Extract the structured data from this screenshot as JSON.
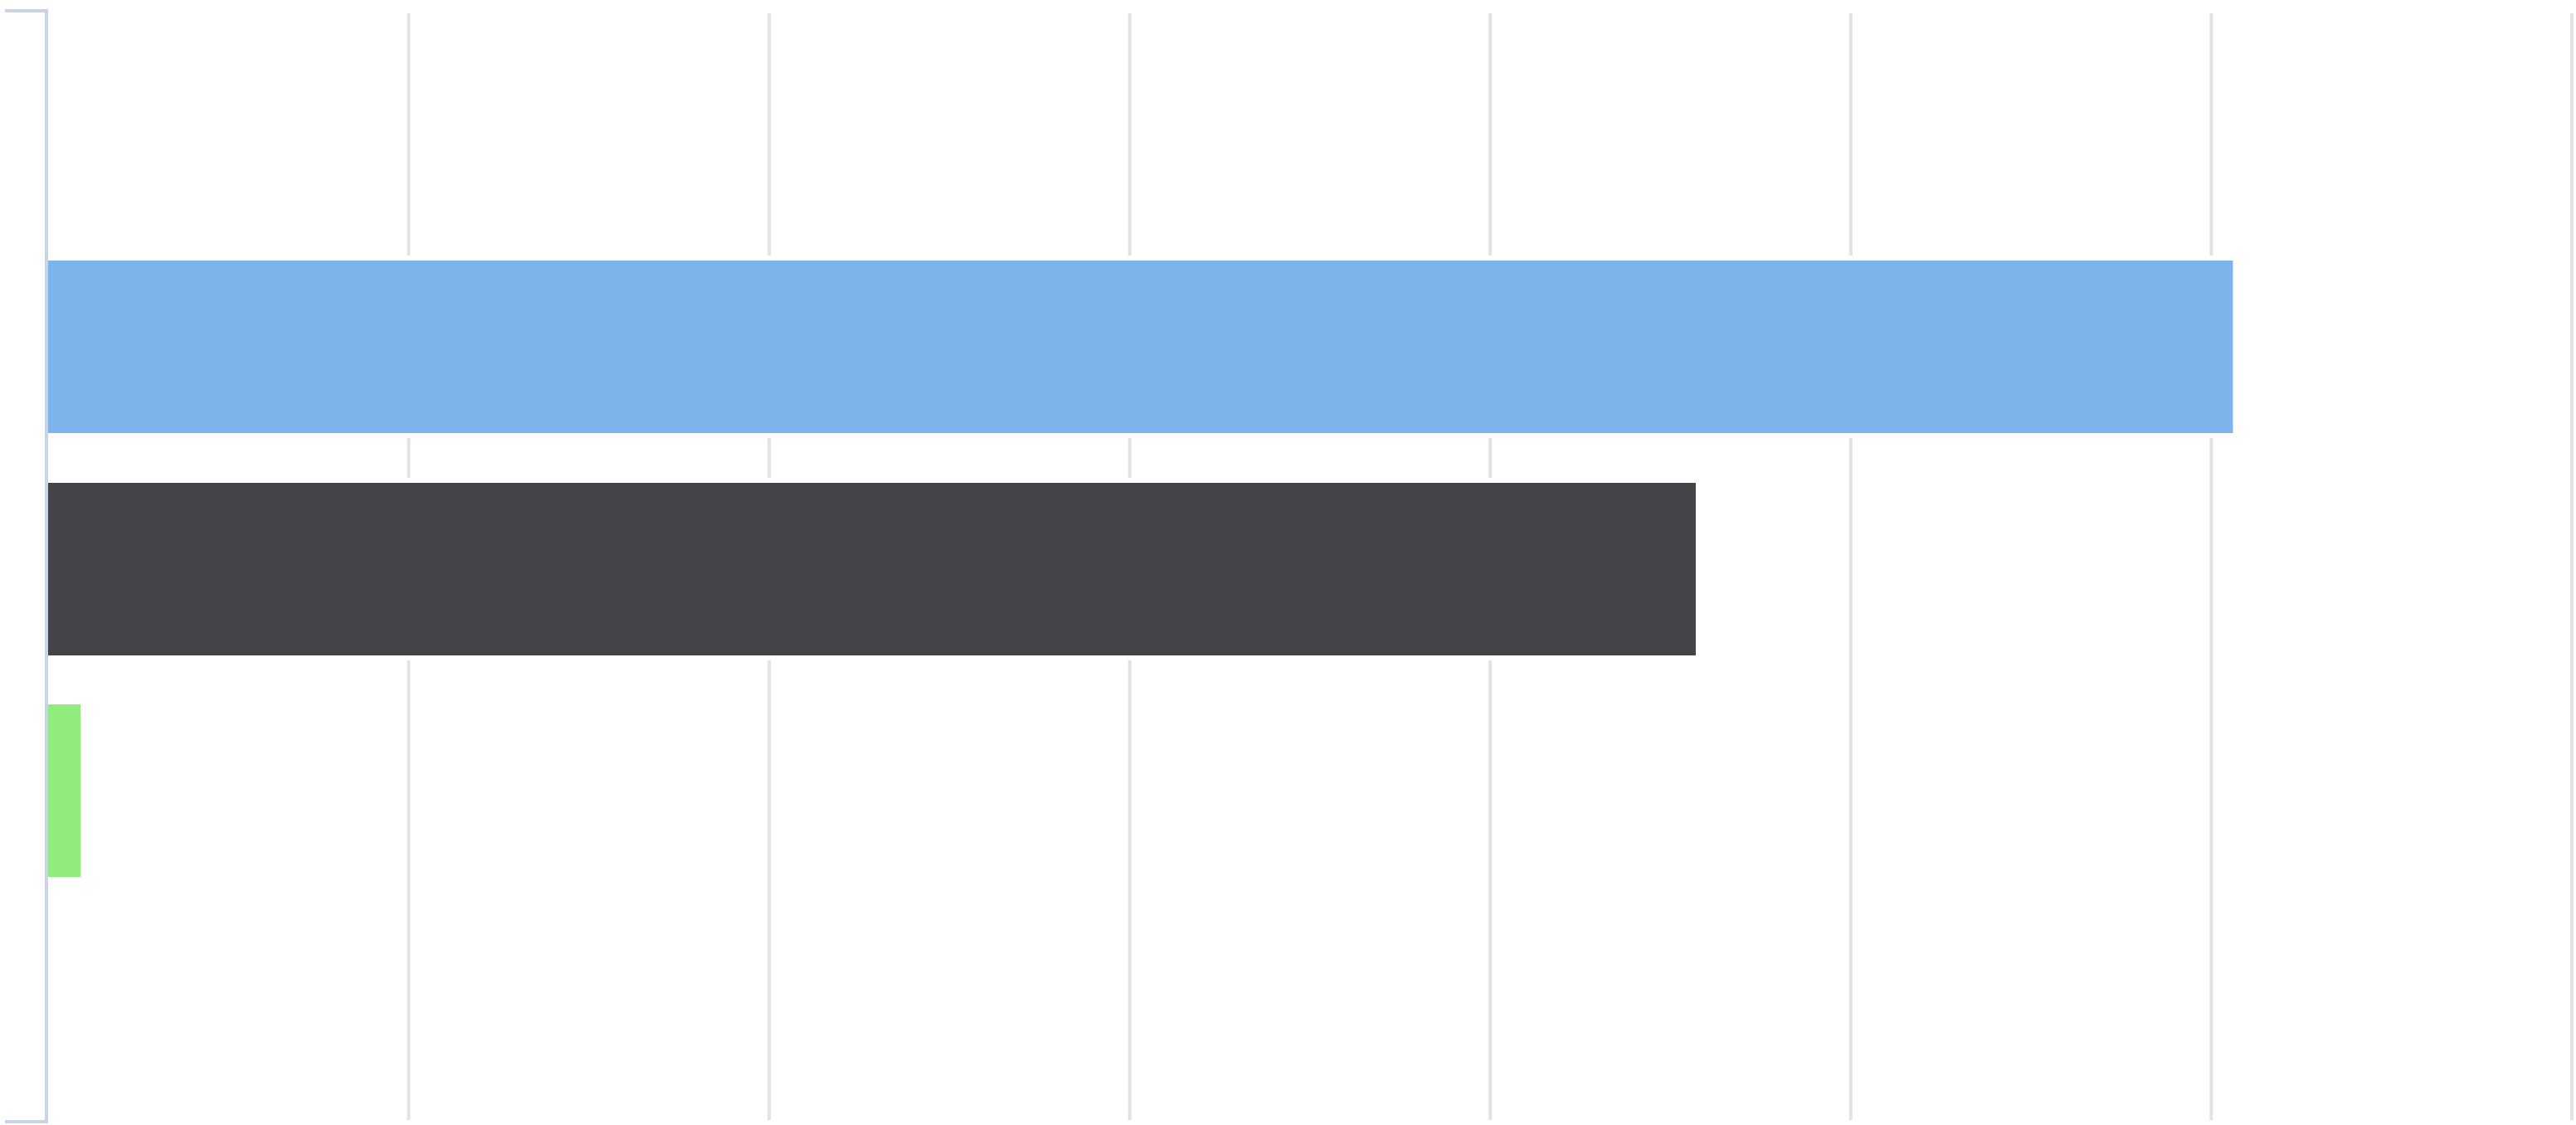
{
  "chart_data": {
    "type": "bar",
    "orientation": "horizontal",
    "title": "",
    "xlabel": "",
    "ylabel": "",
    "grid": true,
    "xlim": [
      0,
      70
    ],
    "gridline_values": [
      10,
      20,
      30,
      40,
      50,
      60,
      70
    ],
    "categories": [
      "",
      "",
      ""
    ],
    "values": [
      60.6,
      45.7,
      0.9
    ],
    "colors": [
      "#7cb4eb",
      "#434348",
      "#90ed7d"
    ]
  }
}
